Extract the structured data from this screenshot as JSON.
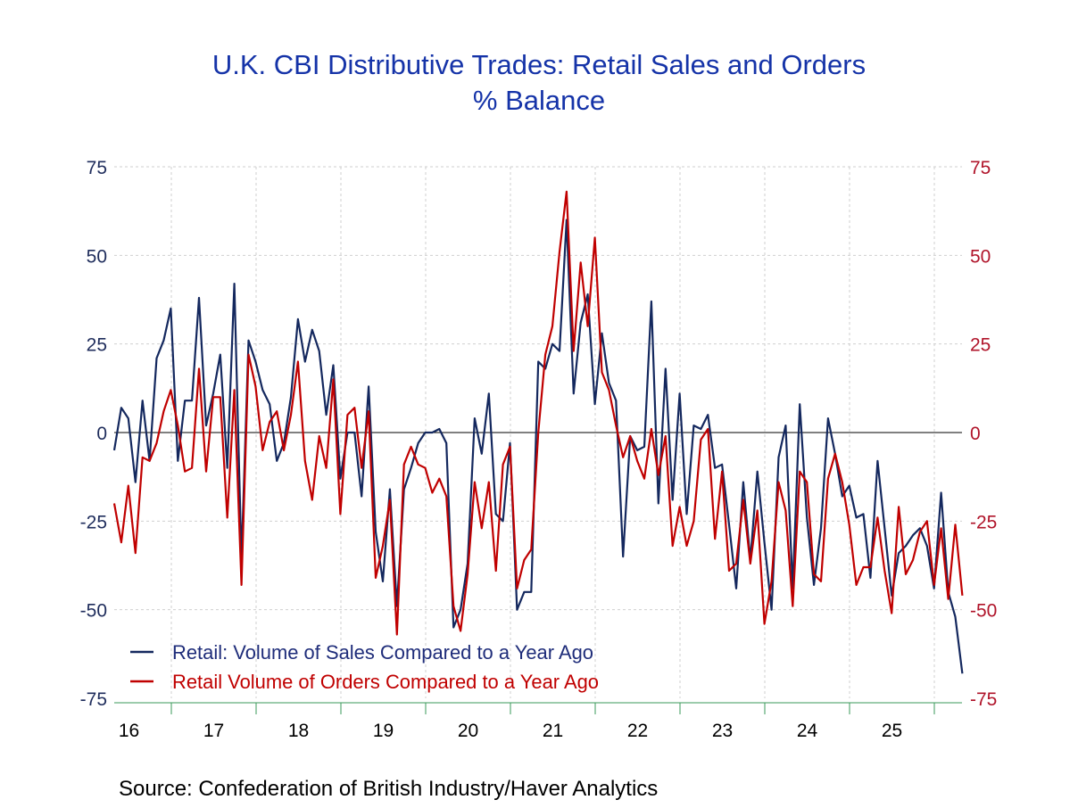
{
  "chart_data": {
    "type": "line",
    "title": "U.K. CBI Distributive Trades: Retail Sales and Orders",
    "subtitle": "% Balance",
    "xlabel": "",
    "ylabel": "",
    "frequency": "monthly",
    "start": "2016-04",
    "x_tick_labels": [
      "16",
      "17",
      "18",
      "19",
      "20",
      "21",
      "22",
      "23",
      "24",
      "25"
    ],
    "y_ticks_left": [
      "75",
      "50",
      "25",
      "0",
      "-25",
      "-50",
      "-75"
    ],
    "y_ticks_right": [
      "75",
      "50",
      "25",
      "0",
      "-25",
      "-50",
      "-75"
    ],
    "ylim": [
      -75,
      75
    ],
    "grid": true,
    "legend_position": "bottom-left",
    "series": [
      {
        "name": "Retail: Volume of Sales Compared to a Year Ago",
        "color": "#14285e",
        "axis": "left",
        "values": [
          -5,
          7,
          4,
          -14,
          9,
          -8,
          21,
          26,
          35,
          -8,
          9,
          9,
          38,
          2,
          11,
          22,
          -10,
          42,
          -36,
          26,
          20,
          12,
          8,
          -8,
          -3,
          10,
          32,
          20,
          29,
          23,
          5,
          19,
          -13,
          0,
          0,
          -18,
          13,
          -28,
          -42,
          -16,
          -49,
          -16,
          -10,
          -3,
          0,
          0,
          1,
          -3,
          -55,
          -50,
          -37,
          4,
          -6,
          11,
          -23,
          -25,
          -3,
          -50,
          -45,
          -45,
          20,
          18,
          25,
          23,
          60,
          11,
          31,
          39,
          8,
          28,
          14,
          9,
          -35,
          -1,
          -5,
          -4,
          37,
          -20,
          18,
          -19,
          11,
          -23,
          2,
          1,
          5,
          -10,
          -9,
          -26,
          -44,
          -14,
          -36,
          -11,
          -31,
          -50,
          -7,
          2,
          -44,
          8,
          -24,
          -43,
          -27,
          4,
          -6,
          -18,
          -15,
          -24,
          -23,
          -41,
          -8,
          -27,
          -46,
          -34,
          -32,
          -29,
          -27,
          -32,
          -44,
          -17,
          -45,
          -52,
          -68
        ]
      },
      {
        "name": "Retail Volume of Orders Compared to a Year Ago",
        "color": "#c00000",
        "axis": "right",
        "values": [
          -20,
          -31,
          -15,
          -34,
          -7,
          -8,
          -3,
          6,
          12,
          2,
          -11,
          -10,
          18,
          -11,
          10,
          10,
          -24,
          12,
          -43,
          22,
          13,
          -5,
          3,
          6,
          -5,
          5,
          20,
          -8,
          -19,
          -1,
          -10,
          15,
          -23,
          5,
          7,
          -10,
          6,
          -41,
          -32,
          -19,
          -57,
          -9,
          -4,
          -9,
          -10,
          -17,
          -13,
          -18,
          -49,
          -56,
          -40,
          -14,
          -27,
          -14,
          -39,
          -9,
          -4,
          -44,
          -36,
          -33,
          0,
          22,
          30,
          51,
          68,
          23,
          48,
          30,
          55,
          17,
          12,
          2,
          -7,
          -1,
          -8,
          -13,
          1,
          -12,
          -1,
          -32,
          -21,
          -32,
          -25,
          -2,
          1,
          -30,
          -11,
          -39,
          -37,
          -19,
          -37,
          -22,
          -54,
          -42,
          -14,
          -22,
          -49,
          -11,
          -14,
          -40,
          -42,
          -13,
          -6,
          -14,
          -26,
          -43,
          -38,
          -38,
          -24,
          -39,
          -51,
          -21,
          -40,
          -36,
          -28,
          -25,
          -43,
          -27,
          -47,
          -26,
          -46
        ]
      }
    ],
    "source": "Source:  Confederation of British Industry/Haver Analytics"
  }
}
